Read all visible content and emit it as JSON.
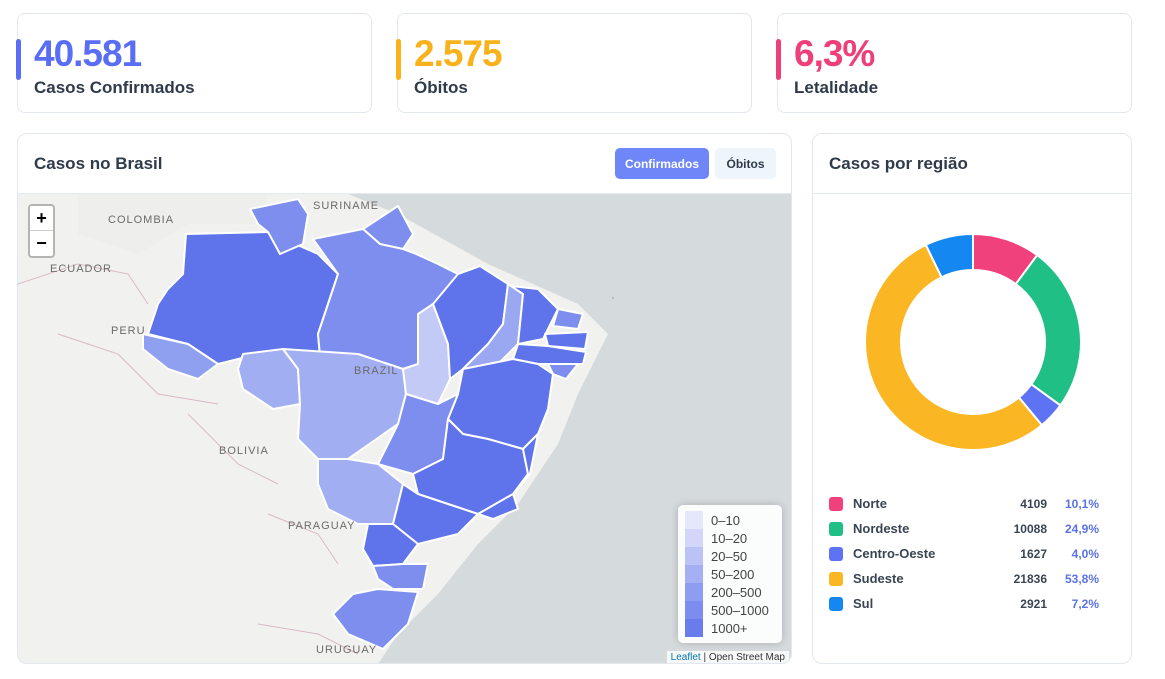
{
  "stats": {
    "confirmed": {
      "value": "40.581",
      "label": "Casos Confirmados",
      "color": "#5a6ef5"
    },
    "deaths": {
      "value": "2.575",
      "label": "Óbitos",
      "color": "#f9b21c"
    },
    "lethality": {
      "value": "6,3%",
      "label": "Letalidade",
      "color": "#ee3f79"
    }
  },
  "map_panel": {
    "title": "Casos no Brasil",
    "btn_confirmed": "Confirmados",
    "btn_deaths": "Óbitos",
    "zoom_in": "+",
    "zoom_out": "−",
    "map_labels": {
      "colombia": "COLOMBIA",
      "suriname": "SURINAME",
      "ecuador": "ECUADOR",
      "peru": "PERU",
      "brazil": "BRAZIL",
      "bolivia": "BOLIVIA",
      "paraguay": "PARAGUAY",
      "uruguay": "URUGUAY"
    },
    "legend": [
      {
        "label": "0–10",
        "color": "#e2e5fb"
      },
      {
        "label": "10–20",
        "color": "#cdd2f8"
      },
      {
        "label": "20–50",
        "color": "#b4bcf5"
      },
      {
        "label": "50–200",
        "color": "#9ba6f2"
      },
      {
        "label": "200–500",
        "color": "#8292ef"
      },
      {
        "label": "500–1000",
        "color": "#6f81ed"
      },
      {
        "label": "1000+",
        "color": "#5a6ee9"
      }
    ],
    "attribution_link": "Leaflet",
    "attribution_text": " | Open Street Map"
  },
  "region_panel": {
    "title": "Casos por região",
    "regions": [
      {
        "name": "Norte",
        "count": "4109",
        "pct": "10,1%",
        "color": "#f0417c",
        "value": 4109
      },
      {
        "name": "Nordeste",
        "count": "10088",
        "pct": "24,9%",
        "color": "#20bf86",
        "value": 10088
      },
      {
        "name": "Centro-Oeste",
        "count": "1627",
        "pct": "4,0%",
        "color": "#5e72f4",
        "value": 1627
      },
      {
        "name": "Sudeste",
        "count": "21836",
        "pct": "53,8%",
        "color": "#fbb723",
        "value": 21836
      },
      {
        "name": "Sul",
        "count": "2921",
        "pct": "7,2%",
        "color": "#1587f0",
        "value": 2921
      }
    ]
  }
}
